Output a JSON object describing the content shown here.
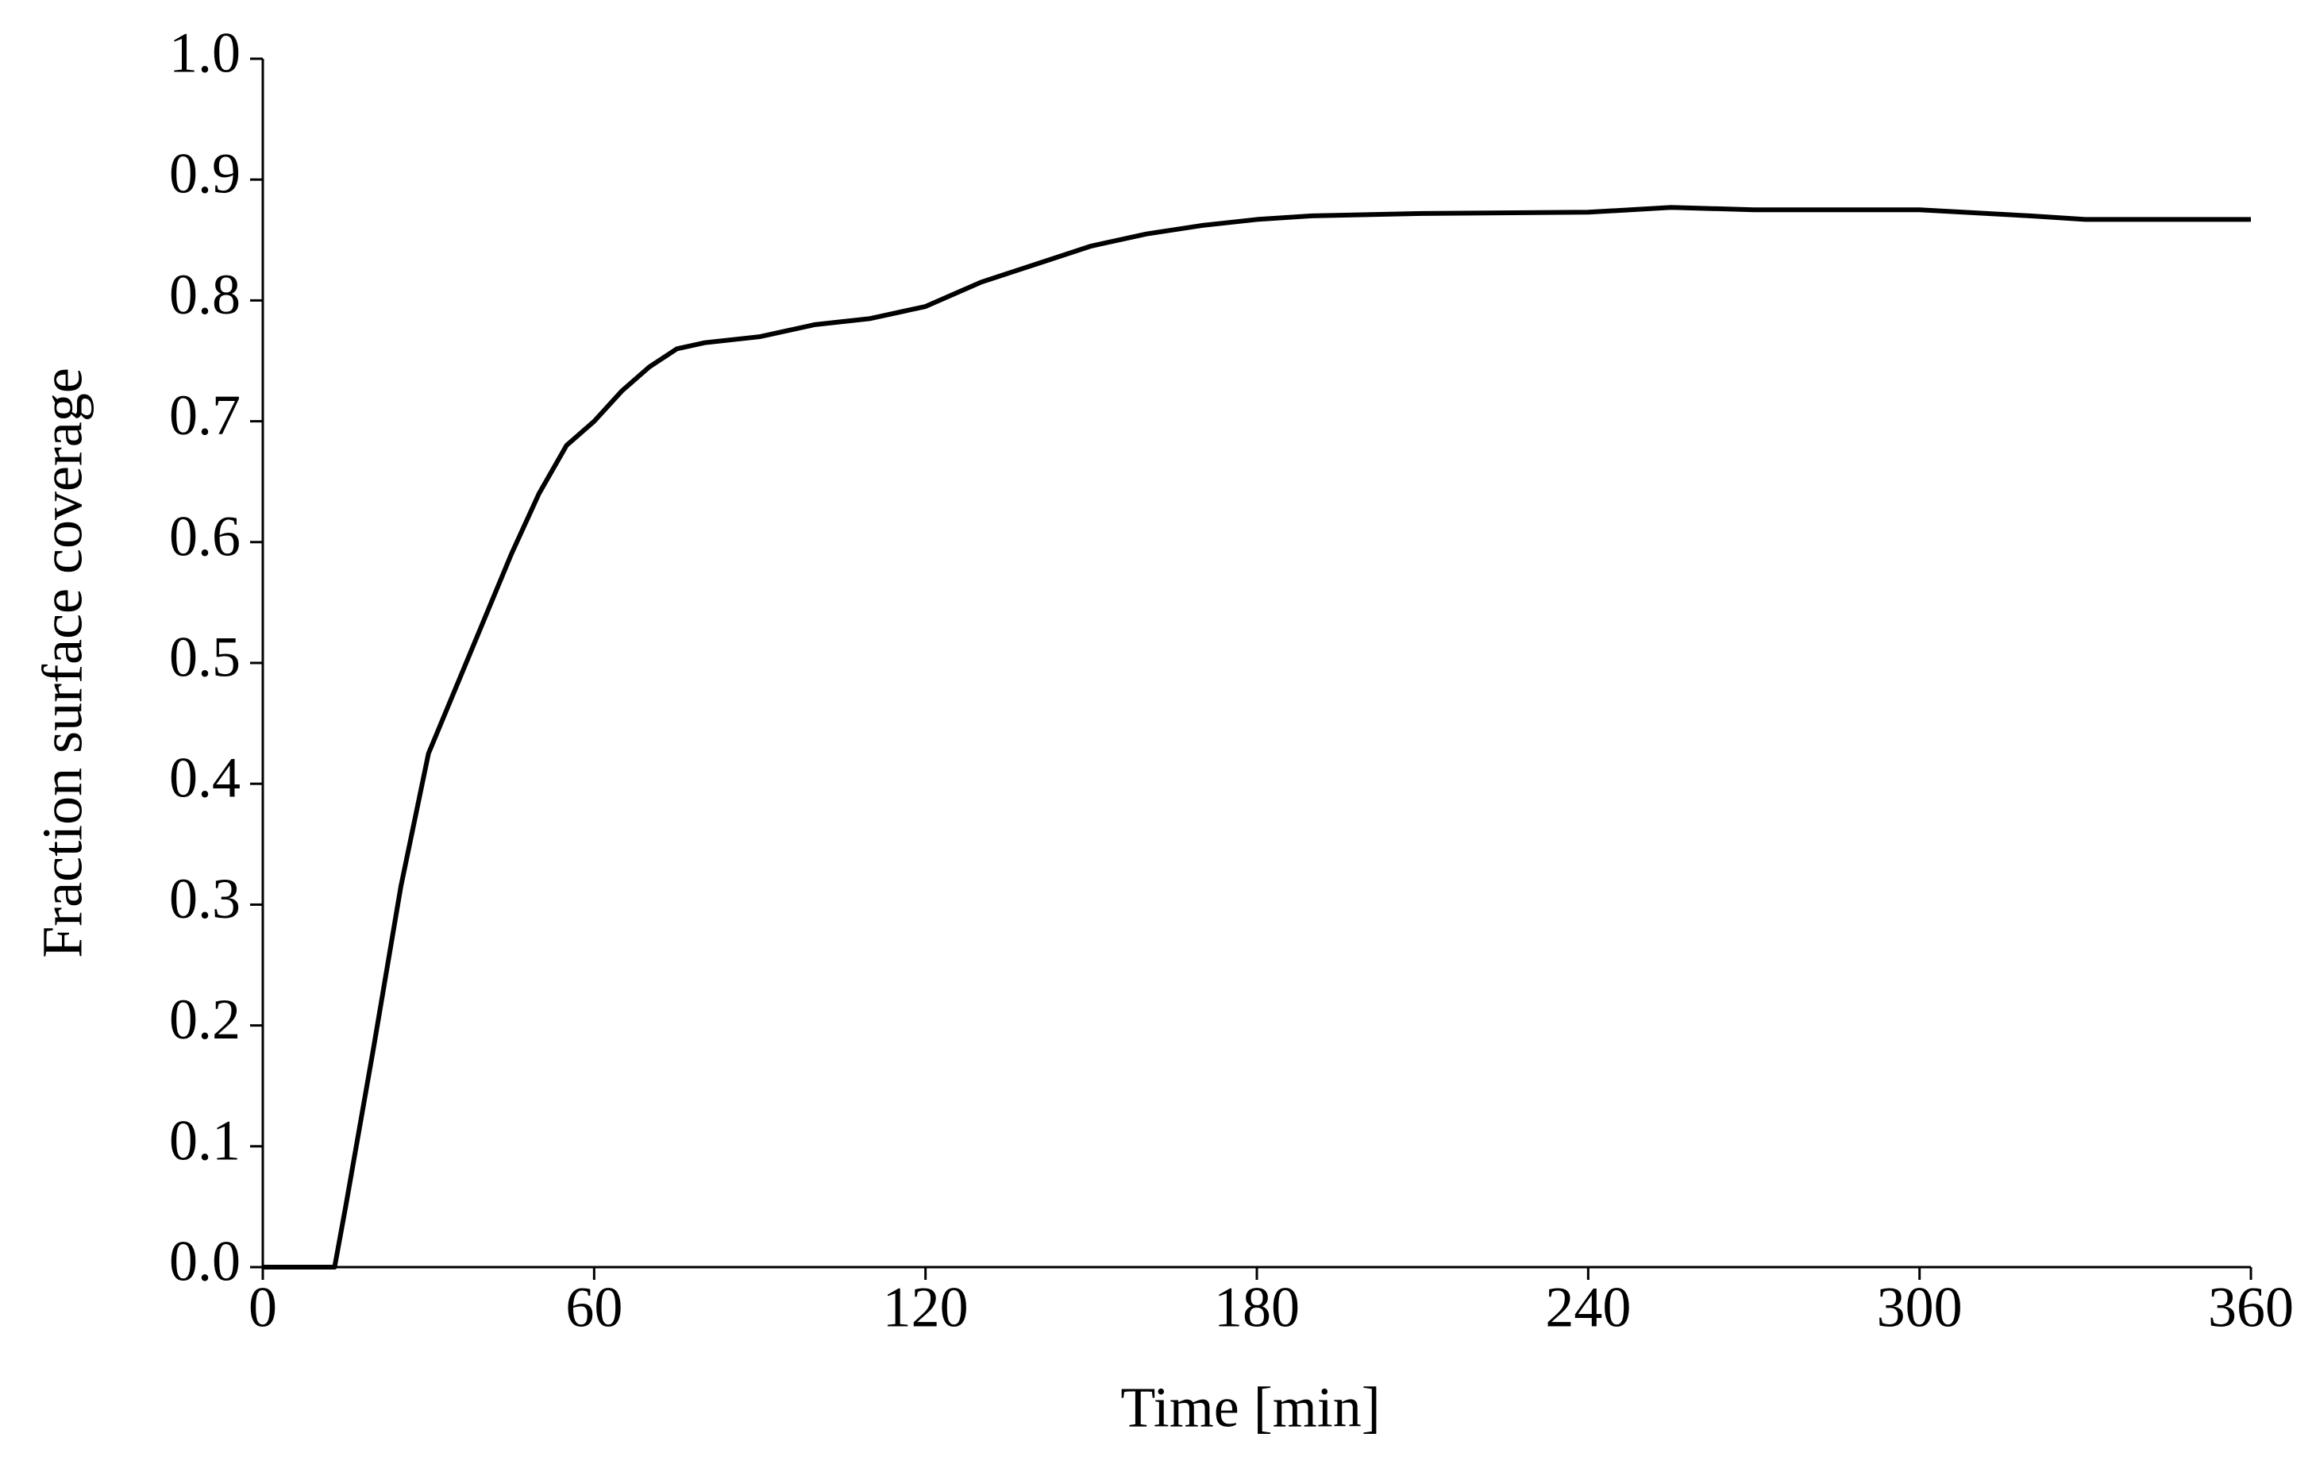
{
  "chart_data": {
    "type": "line",
    "x_label": "Time [min]",
    "y_label": "Fraction surface coverage",
    "x": [
      0,
      13,
      15,
      20,
      25,
      30,
      35,
      40,
      45,
      50,
      55,
      60,
      65,
      70,
      75,
      80,
      90,
      100,
      110,
      120,
      130,
      140,
      150,
      160,
      170,
      180,
      190,
      210,
      240,
      255,
      270,
      300,
      320,
      330,
      360
    ],
    "series": [
      {
        "color": "#000000",
        "values": [
          0,
          0,
          0.05,
          0.18,
          0.315,
          0.425,
          0.48,
          0.535,
          0.59,
          0.64,
          0.68,
          0.7,
          0.725,
          0.745,
          0.76,
          0.765,
          0.77,
          0.78,
          0.785,
          0.795,
          0.815,
          0.83,
          0.845,
          0.855,
          0.862,
          0.867,
          0.87,
          0.872,
          0.873,
          0.877,
          0.875,
          0.875,
          0.87,
          0.867,
          0.867
        ]
      }
    ],
    "xlim": [
      0,
      360
    ],
    "xticks": [
      0,
      60,
      120,
      180,
      240,
      300,
      360
    ],
    "ylim": [
      0,
      1
    ],
    "yticks": [
      {
        "value": 0,
        "label": "0.0"
      },
      0.1,
      0.2,
      0.3,
      0.4,
      0.5,
      0.6,
      0.7,
      0.8,
      0.9,
      {
        "value": 1,
        "label": "1.0"
      }
    ],
    "grid": false
  }
}
